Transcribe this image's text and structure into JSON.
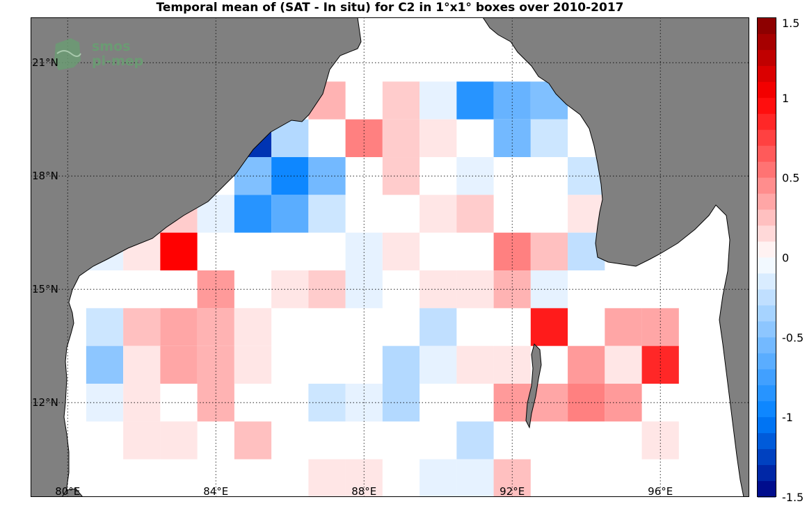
{
  "title": "Temporal mean of (SAT - In situ) for C2 in 1°x1° boxes over 2010-2017",
  "logo": {
    "line1": "smos",
    "line2": "pi-mep"
  },
  "map": {
    "lon_range": [
      79,
      98.4
    ],
    "lat_range": [
      9.5,
      22.2
    ],
    "lon_ticks": [
      80,
      84,
      88,
      92,
      96
    ],
    "lon_tick_labels": [
      "80°E",
      "84°E",
      "88°E",
      "92°E",
      "96°E"
    ],
    "lat_ticks": [
      12,
      15,
      18,
      21
    ],
    "lat_tick_labels": [
      "12°N",
      "15°N",
      "18°N",
      "21°N"
    ],
    "land_color": "#808080",
    "grid": "dotted"
  },
  "chart_data": {
    "type": "heatmap",
    "title": "Temporal mean of (SAT - In situ) for C2 in 1°x1° boxes over 2010-2017",
    "cell_size_deg": 1,
    "value_range": [
      -1.5,
      1.5
    ],
    "colorbar_ticks": [
      1.5,
      1,
      0.5,
      0,
      -0.5,
      -1,
      -1.5
    ],
    "colorbar_tick_labels": [
      "1.5",
      "1",
      "0.5",
      "0",
      "-0.5",
      "-1",
      "-1.5"
    ],
    "cells": [
      {
        "lon": 87,
        "lat": 20,
        "value": 0.3
      },
      {
        "lon": 89,
        "lat": 20,
        "value": 0.2
      },
      {
        "lon": 90,
        "lat": 20,
        "value": -0.1
      },
      {
        "lon": 91,
        "lat": 20,
        "value": -0.85
      },
      {
        "lon": 92,
        "lat": 20,
        "value": -0.6
      },
      {
        "lon": 93,
        "lat": 20,
        "value": -0.5
      },
      {
        "lon": 85,
        "lat": 19,
        "value": -1.3
      },
      {
        "lon": 86,
        "lat": 19,
        "value": -0.3
      },
      {
        "lon": 88,
        "lat": 19,
        "value": 0.5
      },
      {
        "lon": 89,
        "lat": 19,
        "value": 0.2
      },
      {
        "lon": 90,
        "lat": 19,
        "value": 0.1
      },
      {
        "lon": 92,
        "lat": 19,
        "value": -0.55
      },
      {
        "lon": 93,
        "lat": 19,
        "value": -0.2
      },
      {
        "lon": 85,
        "lat": 18,
        "value": -0.5
      },
      {
        "lon": 86,
        "lat": 18,
        "value": -0.95
      },
      {
        "lon": 87,
        "lat": 18,
        "value": -0.55
      },
      {
        "lon": 89,
        "lat": 18,
        "value": 0.2
      },
      {
        "lon": 91,
        "lat": 18,
        "value": -0.1
      },
      {
        "lon": 94,
        "lat": 18,
        "value": -0.2
      },
      {
        "lon": 83,
        "lat": 17,
        "value": 0.2
      },
      {
        "lon": 84,
        "lat": 17,
        "value": -0.1
      },
      {
        "lon": 85,
        "lat": 17,
        "value": -0.85
      },
      {
        "lon": 86,
        "lat": 17,
        "value": -0.65
      },
      {
        "lon": 87,
        "lat": 17,
        "value": -0.2
      },
      {
        "lon": 90,
        "lat": 17,
        "value": 0.1
      },
      {
        "lon": 91,
        "lat": 17,
        "value": 0.2
      },
      {
        "lon": 94,
        "lat": 17,
        "value": 0.1
      },
      {
        "lon": 81,
        "lat": 16,
        "value": -0.1
      },
      {
        "lon": 82,
        "lat": 16,
        "value": 0.1
      },
      {
        "lon": 83,
        "lat": 16,
        "value": 1.0
      },
      {
        "lon": 88,
        "lat": 16,
        "value": -0.1
      },
      {
        "lon": 89,
        "lat": 16,
        "value": 0.1
      },
      {
        "lon": 92,
        "lat": 16,
        "value": 0.5
      },
      {
        "lon": 93,
        "lat": 16,
        "value": 0.25
      },
      {
        "lon": 94,
        "lat": 16,
        "value": -0.25
      },
      {
        "lon": 84,
        "lat": 15,
        "value": 0.4
      },
      {
        "lon": 86,
        "lat": 15,
        "value": 0.1
      },
      {
        "lon": 87,
        "lat": 15,
        "value": 0.2
      },
      {
        "lon": 88,
        "lat": 15,
        "value": -0.1
      },
      {
        "lon": 90,
        "lat": 15,
        "value": 0.1
      },
      {
        "lon": 91,
        "lat": 15,
        "value": 0.1
      },
      {
        "lon": 92,
        "lat": 15,
        "value": 0.3
      },
      {
        "lon": 93,
        "lat": 15,
        "value": -0.1
      },
      {
        "lon": 81,
        "lat": 14,
        "value": -0.2
      },
      {
        "lon": 82,
        "lat": 14,
        "value": 0.25
      },
      {
        "lon": 83,
        "lat": 14,
        "value": 0.35
      },
      {
        "lon": 84,
        "lat": 14,
        "value": 0.3
      },
      {
        "lon": 85,
        "lat": 14,
        "value": 0.1
      },
      {
        "lon": 90,
        "lat": 14,
        "value": -0.25
      },
      {
        "lon": 93,
        "lat": 14,
        "value": 0.9
      },
      {
        "lon": 95,
        "lat": 14,
        "value": 0.35
      },
      {
        "lon": 96,
        "lat": 14,
        "value": 0.35
      },
      {
        "lon": 81,
        "lat": 13,
        "value": -0.45
      },
      {
        "lon": 82,
        "lat": 13,
        "value": 0.1
      },
      {
        "lon": 83,
        "lat": 13,
        "value": 0.35
      },
      {
        "lon": 84,
        "lat": 13,
        "value": 0.3
      },
      {
        "lon": 85,
        "lat": 13,
        "value": 0.1
      },
      {
        "lon": 89,
        "lat": 13,
        "value": -0.3
      },
      {
        "lon": 90,
        "lat": 13,
        "value": -0.1
      },
      {
        "lon": 91,
        "lat": 13,
        "value": 0.1
      },
      {
        "lon": 92,
        "lat": 13,
        "value": 0.1
      },
      {
        "lon": 94,
        "lat": 13,
        "value": 0.4
      },
      {
        "lon": 95,
        "lat": 13,
        "value": 0.1
      },
      {
        "lon": 96,
        "lat": 13,
        "value": 0.85
      },
      {
        "lon": 81,
        "lat": 12,
        "value": -0.1
      },
      {
        "lon": 82,
        "lat": 12,
        "value": 0.1
      },
      {
        "lon": 84,
        "lat": 12,
        "value": 0.3
      },
      {
        "lon": 87,
        "lat": 12,
        "value": -0.2
      },
      {
        "lon": 88,
        "lat": 12,
        "value": -0.1
      },
      {
        "lon": 89,
        "lat": 12,
        "value": -0.3
      },
      {
        "lon": 92,
        "lat": 12,
        "value": 0.4
      },
      {
        "lon": 93,
        "lat": 12,
        "value": 0.35
      },
      {
        "lon": 94,
        "lat": 12,
        "value": 0.5
      },
      {
        "lon": 95,
        "lat": 12,
        "value": 0.4
      },
      {
        "lon": 82,
        "lat": 11,
        "value": 0.1
      },
      {
        "lon": 83,
        "lat": 11,
        "value": 0.1
      },
      {
        "lon": 85,
        "lat": 11,
        "value": 0.25
      },
      {
        "lon": 91,
        "lat": 11,
        "value": -0.25
      },
      {
        "lon": 96,
        "lat": 11,
        "value": 0.1
      },
      {
        "lon": 87,
        "lat": 10,
        "value": 0.1
      },
      {
        "lon": 88,
        "lat": 10,
        "value": 0.1
      },
      {
        "lon": 90,
        "lat": 10,
        "value": -0.1
      },
      {
        "lon": 91,
        "lat": 10,
        "value": -0.1
      },
      {
        "lon": 92,
        "lat": 10,
        "value": 0.25
      }
    ]
  }
}
